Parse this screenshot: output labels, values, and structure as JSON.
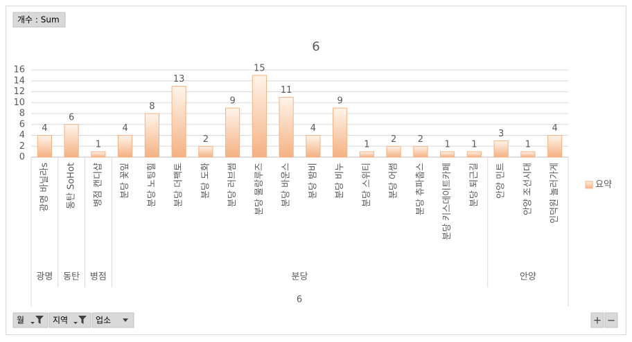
{
  "chart_data": {
    "type": "bar",
    "title": "6",
    "x_label": "6",
    "groups": [
      {
        "label": "광명",
        "categories": [
          "광명 바닐라s"
        ]
      },
      {
        "label": "동탄",
        "categories": [
          "동탄 SoHot"
        ]
      },
      {
        "label": "병점",
        "categories": [
          "병점 캔디샵"
        ]
      },
      {
        "label": "분당",
        "categories": [
          "분당 꽃잎",
          "분당 노팅힐",
          "분당 더팩토",
          "분당 도화",
          "분당 러브썸",
          "분당 물랑루즈",
          "분당 바운스",
          "분당 밤비",
          "분당 비누",
          "분당 스위티",
          "분당 어썸",
          "분당 츄파춥스",
          "분당 키스데이트카페",
          "분당 퇴근길"
        ]
      },
      {
        "label": "안양",
        "categories": [
          "안양 민트",
          "안양 조선시대",
          "인덕원 놀러가게"
        ]
      }
    ],
    "series": [
      {
        "name": "요약",
        "color": "#f4b183",
        "values": [
          4,
          6,
          1,
          4,
          8,
          13,
          2,
          9,
          15,
          11,
          4,
          9,
          1,
          2,
          2,
          1,
          1,
          3,
          1,
          4
        ]
      }
    ],
    "ylim": [
      0,
      16
    ],
    "yticks": [
      0,
      2,
      4,
      6,
      8,
      10,
      12,
      14,
      16
    ],
    "grid": true,
    "legend": "right",
    "value_field": "개수 : Sum",
    "axis_fields": [
      {
        "label": "월",
        "filtered": true
      },
      {
        "label": "지역",
        "filtered": true
      },
      {
        "label": "업소",
        "filtered": false
      }
    ],
    "zoom_buttons": [
      "+",
      "−"
    ]
  }
}
